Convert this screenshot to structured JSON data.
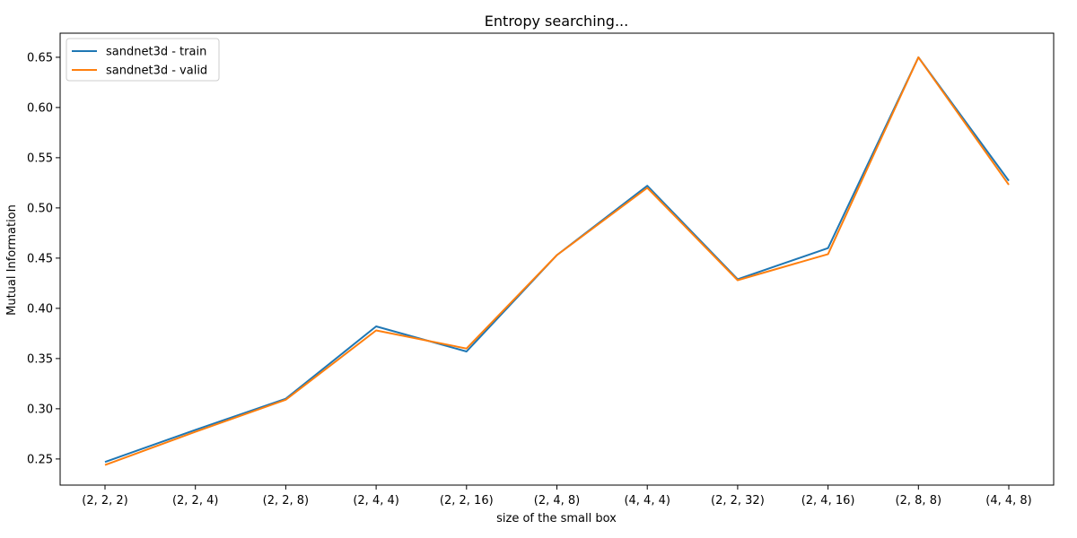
{
  "chart_data": {
    "type": "line",
    "title": "Entropy searching...",
    "xlabel": "size of the small box",
    "ylabel": "Mutual Information",
    "categories": [
      "(2, 2, 2)",
      "(2, 2, 4)",
      "(2, 2, 8)",
      "(2, 4, 4)",
      "(2, 2, 16)",
      "(2, 4, 8)",
      "(4, 4, 4)",
      "(2, 2, 32)",
      "(2, 4, 16)",
      "(2, 8, 8)",
      "(4, 4, 8)"
    ],
    "yticks": [
      "0.25",
      "0.30",
      "0.35",
      "0.40",
      "0.45",
      "0.50",
      "0.55",
      "0.60",
      "0.65"
    ],
    "ylim": [
      0.224,
      0.674
    ],
    "grid": false,
    "legend_position": "upper-left",
    "series": [
      {
        "name": "sandnet3d - train",
        "color": "#1f77b4",
        "values": [
          0.247,
          0.279,
          0.31,
          0.382,
          0.357,
          0.453,
          0.522,
          0.429,
          0.46,
          0.65,
          0.527
        ]
      },
      {
        "name": "sandnet3d - valid",
        "color": "#ff7f0e",
        "values": [
          0.244,
          0.277,
          0.309,
          0.378,
          0.36,
          0.453,
          0.52,
          0.428,
          0.454,
          0.65,
          0.523
        ]
      }
    ]
  }
}
